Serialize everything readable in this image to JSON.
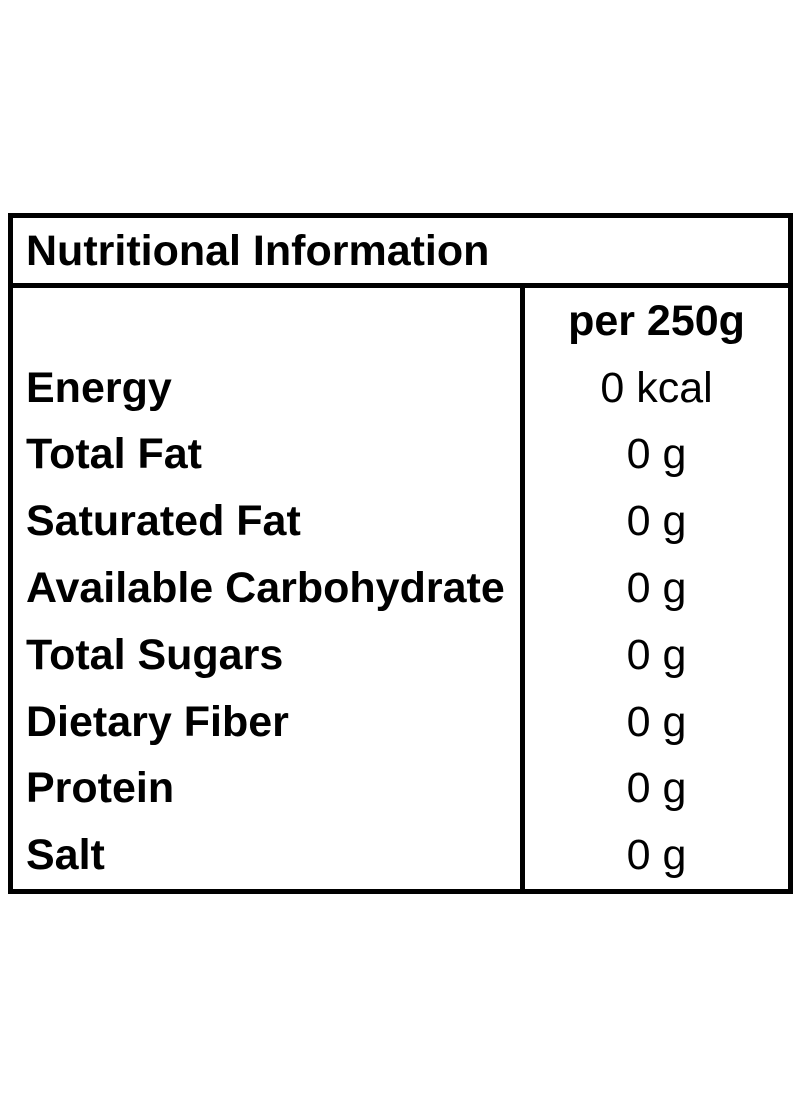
{
  "table": {
    "title": "Nutritional Information",
    "column_header": "per 250g",
    "rows": [
      {
        "label": "Energy",
        "value": "0 kcal"
      },
      {
        "label": "Total Fat",
        "value": "0 g"
      },
      {
        "label": "Saturated Fat",
        "value": "0 g"
      },
      {
        "label": "Available Carbohydrate",
        "value": "0 g"
      },
      {
        "label": "Total Sugars",
        "value": "0 g"
      },
      {
        "label": "Dietary Fiber",
        "value": "0 g"
      },
      {
        "label": "Protein",
        "value": "0 g"
      },
      {
        "label": "Salt",
        "value": "0 g"
      }
    ],
    "colors": {
      "border": "#000000",
      "text": "#000000",
      "background": "#ffffff"
    }
  }
}
